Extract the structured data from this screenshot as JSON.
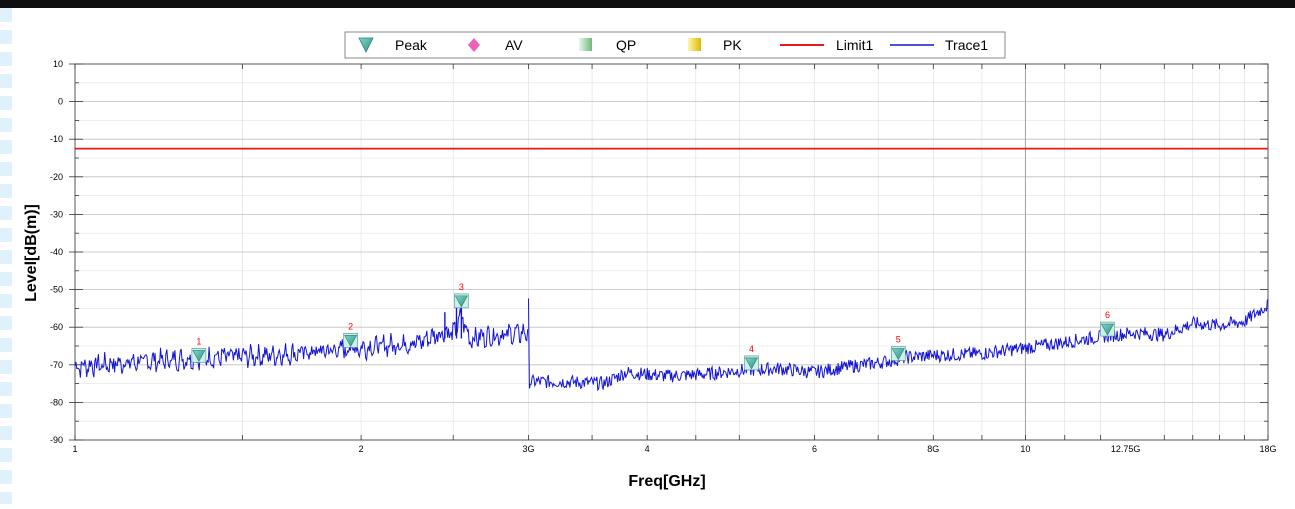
{
  "chart_data": {
    "type": "line",
    "xlabel": "Freq[GHz]",
    "ylabel": "Level[dB(m)]",
    "x_scale": "log",
    "xlim": [
      1,
      18
    ],
    "ylim": [
      -90,
      10
    ],
    "y_ticks": [
      10,
      0,
      -10,
      -20,
      -30,
      -40,
      -50,
      -60,
      -70,
      -80,
      -90
    ],
    "x_ticks": [
      {
        "value": 1,
        "label": "1"
      },
      {
        "value": 2,
        "label": "2"
      },
      {
        "value": 3,
        "label": "3G"
      },
      {
        "value": 4,
        "label": "4"
      },
      {
        "value": 6,
        "label": "6"
      },
      {
        "value": 8,
        "label": "8G"
      },
      {
        "value": 10,
        "label": "10"
      },
      {
        "value": 12.75,
        "label": "12.75G"
      },
      {
        "value": 18,
        "label": "18G"
      }
    ],
    "grid": true,
    "legend_position": "top",
    "legend": [
      {
        "label": "Peak",
        "symbol": "triangle-down",
        "color": "#4fb3a7"
      },
      {
        "label": "AV",
        "symbol": "diamond",
        "color": "#f062b8"
      },
      {
        "label": "QP",
        "symbol": "square",
        "color": "#9fd3a8"
      },
      {
        "label": "PK",
        "symbol": "square",
        "color": "#f5d400"
      },
      {
        "label": "Limit1",
        "symbol": "line",
        "color": "#e41a1a"
      },
      {
        "label": "Trace1",
        "symbol": "line",
        "color": "#1414d2"
      }
    ],
    "limit_line": {
      "name": "Limit1",
      "value": -12.5,
      "color": "#e41a1a"
    },
    "series": [
      {
        "name": "Trace1",
        "color": "#1414d2",
        "segments": [
          {
            "x": [
              1.0,
              1.2,
              1.4,
              1.6,
              1.9,
              2.1,
              2.3,
              2.45,
              2.5,
              2.55,
              2.6,
              2.8,
              3.0
            ],
            "y": [
              -70.5,
              -69.0,
              -68.0,
              -67.5,
              -66.0,
              -65.0,
              -64.0,
              -61.0,
              -62.0,
              -57.0,
              -63.0,
              -62.0,
              -61.5
            ]
          },
          {
            "x": [
              3.0,
              3.3,
              3.6,
              3.8,
              4.2,
              4.6,
              5.0,
              5.5,
              6.0,
              6.5,
              7.0,
              7.5,
              8.0,
              9.0,
              10.0,
              11.0,
              12.0,
              13.0,
              14.0,
              15.0,
              16.0,
              17.0,
              18.0
            ],
            "y": [
              -74.5,
              -74.5,
              -75.0,
              -72.0,
              -73.0,
              -72.5,
              -71.5,
              -71.0,
              -72.0,
              -70.5,
              -69.5,
              -68.0,
              -67.5,
              -67.0,
              -65.5,
              -64.0,
              -62.5,
              -61.5,
              -62.0,
              -59.0,
              -59.5,
              -58.5,
              -54.0
            ]
          }
        ]
      }
    ],
    "markers": [
      {
        "label": "1",
        "x": 1.35,
        "y": -67.5,
        "type": "Peak"
      },
      {
        "label": "2",
        "x": 1.95,
        "y": -63.5,
        "type": "Peak"
      },
      {
        "label": "3",
        "x": 2.55,
        "y": -53.0,
        "type": "Peak"
      },
      {
        "label": "4",
        "x": 5.15,
        "y": -69.5,
        "type": "Peak"
      },
      {
        "label": "5",
        "x": 7.35,
        "y": -67.0,
        "type": "Peak"
      },
      {
        "label": "6",
        "x": 12.2,
        "y": -60.5,
        "type": "Peak"
      }
    ]
  }
}
